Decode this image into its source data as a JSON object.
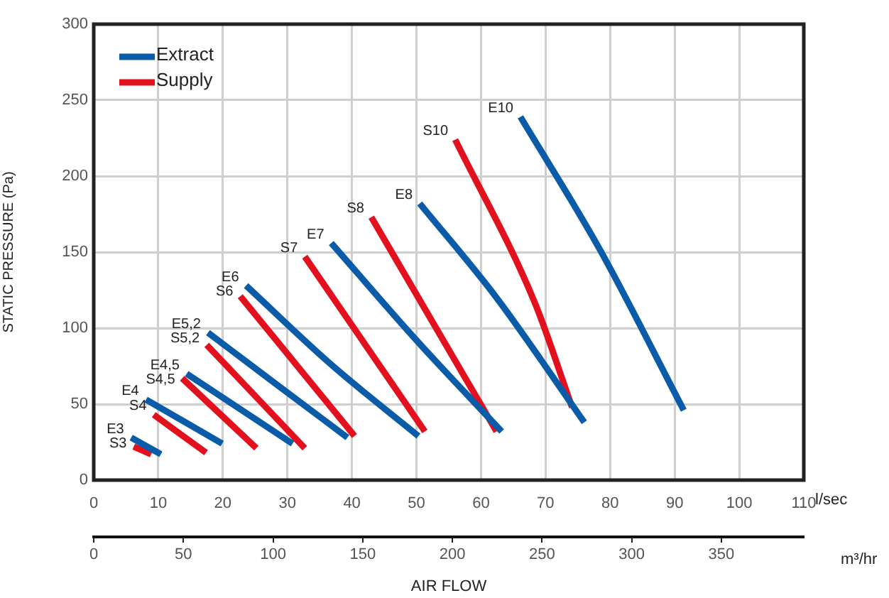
{
  "chart_data": {
    "type": "line",
    "xlabel": "l/sec",
    "x2label": "m³/hr",
    "ylabel": "STATIC PRESSURE (Pa)",
    "xlim": [
      0,
      110
    ],
    "xticks": [
      0,
      10,
      20,
      30,
      40,
      50,
      60,
      70,
      80,
      90,
      100,
      110
    ],
    "x2lim": [
      0,
      396
    ],
    "x2ticks": [
      0,
      50,
      100,
      150,
      200,
      250,
      300,
      350
    ],
    "ylim": [
      0,
      300
    ],
    "yticks": [
      0,
      50,
      100,
      150,
      200,
      250,
      300
    ],
    "grid": true,
    "legend": "top left",
    "marker": "none",
    "line_style": "solid",
    "series": [
      {
        "name": "Extract",
        "color": "#0a5ca8",
        "x": [
          5.8,
          10.4,
          null,
          8.1,
          19.9,
          null,
          14.4,
          30.8,
          null,
          17.7,
          28,
          39.3,
          null,
          23.6,
          36.8,
          50.3,
          null,
          36.8,
          50,
          63.2,
          null,
          50.5,
          62.4,
          76.0,
          null,
          66.1,
          78.5,
          91.4
        ],
        "values": [
          28,
          17,
          null,
          53,
          24,
          null,
          70,
          24,
          null,
          97,
          64,
          28,
          null,
          128,
          76,
          29,
          null,
          156,
          92,
          32,
          null,
          182,
          120,
          38,
          null,
          239,
          151,
          46
        ]
      },
      {
        "name": "Supply",
        "color": "#e3101e",
        "x": [
          6.2,
          8.9,
          null,
          9.3,
          17.4,
          null,
          13.7,
          25.2,
          null,
          17.5,
          32.7,
          null,
          22.7,
          40.4,
          null,
          32.7,
          51.3,
          null,
          43.0,
          62.4,
          null,
          56.0,
          68.3,
          74.1
        ],
        "values": [
          22,
          17,
          null,
          43,
          18,
          null,
          67,
          21,
          null,
          89,
          21,
          null,
          121,
          29,
          null,
          147,
          32,
          null,
          173,
          32,
          null,
          224,
          117,
          48
        ]
      }
    ],
    "annotations": [
      {
        "text": "E3",
        "x": 5.8,
        "y": 28
      },
      {
        "text": "S3",
        "x": 6.2,
        "y": 22
      },
      {
        "text": "E4",
        "x": 8.1,
        "y": 53
      },
      {
        "text": "S4",
        "x": 9.3,
        "y": 43
      },
      {
        "text": "E4,5",
        "x": 14.4,
        "y": 70
      },
      {
        "text": "S4,5",
        "x": 13.7,
        "y": 67
      },
      {
        "text": "E5,2",
        "x": 17.7,
        "y": 97
      },
      {
        "text": "S5,2",
        "x": 17.5,
        "y": 89
      },
      {
        "text": "E6",
        "x": 23.6,
        "y": 128
      },
      {
        "text": "S6",
        "x": 22.7,
        "y": 121
      },
      {
        "text": "E7",
        "x": 36.8,
        "y": 156
      },
      {
        "text": "S7",
        "x": 32.7,
        "y": 147
      },
      {
        "text": "E8",
        "x": 50.5,
        "y": 182
      },
      {
        "text": "S8",
        "x": 43.0,
        "y": 173
      },
      {
        "text": "E10",
        "x": 66.1,
        "y": 239
      },
      {
        "text": "S10",
        "x": 56.0,
        "y": 224
      },
      "AIR FLOW"
    ]
  }
}
